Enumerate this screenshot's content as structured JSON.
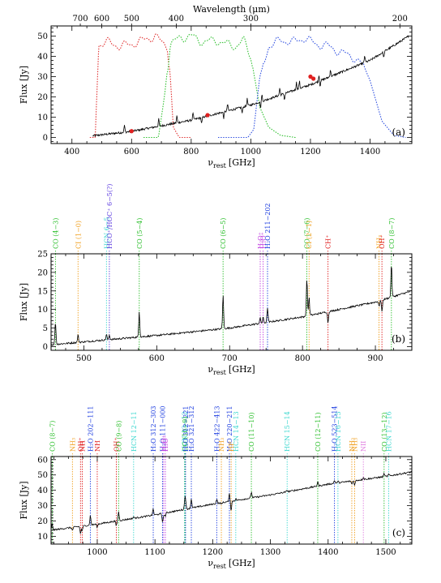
{
  "chart_data": [
    {
      "type": "line",
      "panel_label": "(a)",
      "xlabel_main": "ν",
      "xlabel_sub": "rest",
      "xlabel_unit": "[GHz]",
      "ylabel": "Flux [Jy]",
      "top_axis_label": "Wavelength (μm)",
      "xlim": [
        330,
        1540
      ],
      "ylim": [
        -3,
        55
      ],
      "xticks": [
        400,
        600,
        800,
        1000,
        1200,
        1400
      ],
      "yticks": [
        0,
        10,
        20,
        30,
        40,
        50
      ],
      "top_ticks": [
        {
          "label": "700",
          "nu": 428
        },
        {
          "label": "600",
          "nu": 500
        },
        {
          "label": "500",
          "nu": 600
        },
        {
          "label": "400",
          "nu": 750
        },
        {
          "label": "300",
          "nu": 1000
        },
        {
          "label": "200",
          "nu": 1500
        }
      ],
      "continuum": {
        "x": [
          470,
          600,
          800,
          1000,
          1200,
          1400,
          1530
        ],
        "y": [
          0.8,
          3,
          8.5,
          16,
          26,
          38,
          50
        ]
      },
      "filters": [
        {
          "color": "#e03030",
          "x": [
            460,
            478,
            490,
            520,
            560,
            600,
            640,
            680,
            700,
            720,
            730,
            740,
            760,
            800
          ],
          "y": [
            0,
            0,
            46,
            47,
            45,
            46,
            48,
            50,
            47,
            45,
            30,
            5,
            0,
            0
          ]
        },
        {
          "color": "#30c030",
          "x": [
            640,
            690,
            710,
            730,
            760,
            800,
            840,
            880,
            920,
            950,
            975,
            1000,
            1030,
            1060,
            1100,
            1150
          ],
          "y": [
            0,
            0,
            20,
            46,
            49,
            50,
            47,
            48,
            46,
            45,
            48,
            40,
            15,
            5,
            1,
            0
          ]
        },
        {
          "color": "#3050e0",
          "x": [
            890,
            990,
            1010,
            1030,
            1060,
            1100,
            1140,
            1180,
            1220,
            1260,
            1300,
            1340,
            1380,
            1400,
            1420,
            1440,
            1480,
            1520
          ],
          "y": [
            0,
            0,
            4,
            30,
            45,
            48,
            47,
            49,
            46,
            45,
            42,
            40,
            35,
            28,
            18,
            8,
            1,
            0
          ]
        }
      ],
      "markers": {
        "color": "#e02020",
        "x": [
          600,
          855,
          1200,
          1210
        ],
        "y": [
          3.1,
          11,
          30,
          29
        ]
      }
    },
    {
      "type": "line",
      "panel_label": "(b)",
      "xlabel_main": "ν",
      "xlabel_sub": "rest",
      "xlabel_unit": "[GHz]",
      "ylabel": "Flux [Jy]",
      "xlim": [
        455,
        950
      ],
      "ylim": [
        -1,
        25
      ],
      "xticks": [
        500,
        600,
        700,
        800,
        900
      ],
      "yticks": [
        0,
        5,
        10,
        15,
        20,
        25
      ],
      "continuum": {
        "x": [
          455,
          600,
          700,
          800,
          900,
          950
        ],
        "y": [
          0.5,
          3,
          5,
          8,
          12,
          15
        ]
      },
      "lines": [
        {
          "label": "CO (4−3)",
          "nu": 461,
          "color": "#30c030",
          "peak": 6
        },
        {
          "label": "CI (1−0)",
          "nu": 492,
          "color": "#f0a020",
          "peak": 2
        },
        {
          "label": "HCN 6−5",
          "nu": 531,
          "color": "#40d8d0",
          "peak": 1.5
        },
        {
          "label": "HCO⁺/HOC⁺ 6−5(?)",
          "nu": 535,
          "color": "#6040e0",
          "peak": 1.2
        },
        {
          "label": "CO (5−4)",
          "nu": 576,
          "color": "#30c030",
          "peak": 7
        },
        {
          "label": "CO (6−5)",
          "nu": 691,
          "color": "#30c030",
          "peak": 9
        },
        {
          "label": "H₂O⁺",
          "nu": 742,
          "color": "#c040e0",
          "peak": 1.5
        },
        {
          "label": "H₂O⁺",
          "nu": 746,
          "color": "#c040e0",
          "peak": 1.5
        },
        {
          "label": "H₂O 211−202",
          "nu": 752,
          "color": "#2040e0",
          "peak": 4
        },
        {
          "label": "CO (7−6)",
          "nu": 806,
          "color": "#30c030",
          "peak": 10
        },
        {
          "label": "CI (2−1)",
          "nu": 809,
          "color": "#f0a020",
          "peak": 5
        },
        {
          "label": "CH⁺",
          "nu": 835,
          "color": "#e02020",
          "peak": -3
        },
        {
          "label": "NH₃",
          "nu": 905,
          "color": "#f0a020",
          "peak": -1.5
        },
        {
          "label": "OH⁺",
          "nu": 909,
          "color": "#e02020",
          "peak": -3
        },
        {
          "label": "CO (8−7)",
          "nu": 922,
          "color": "#30c030",
          "peak": 9
        }
      ]
    },
    {
      "type": "line",
      "panel_label": "(c)",
      "xlabel_main": "ν",
      "xlabel_sub": "rest",
      "xlabel_unit": "[GHz]",
      "ylabel": "Flux [Jy]",
      "xlim": [
        920,
        1545
      ],
      "ylim": [
        5,
        62
      ],
      "xticks": [
        1000,
        1100,
        1200,
        1300,
        1400,
        1500
      ],
      "yticks": [
        10,
        20,
        30,
        40,
        50,
        60
      ],
      "continuum": {
        "x": [
          920,
          1000,
          1100,
          1200,
          1300,
          1400,
          1500,
          1545
        ],
        "y": [
          14,
          18,
          24,
          31,
          37,
          44,
          49,
          52
        ]
      },
      "lines": [
        {
          "label": "CO (8−7)",
          "nu": 922,
          "color": "#30c030",
          "peak": 4
        },
        {
          "label": "NH₃",
          "nu": 957,
          "color": "#f0a020",
          "peak": -2
        },
        {
          "label": "OH⁺",
          "nu": 971,
          "color": "#e02020",
          "peak": -5
        },
        {
          "label": "NH",
          "nu": 974,
          "color": "#e02020",
          "peak": -3
        },
        {
          "label": "H₂O 202−111",
          "nu": 988,
          "color": "#2040e0",
          "peak": 6
        },
        {
          "label": "NH",
          "nu": 1000,
          "color": "#e02020",
          "peak": -2
        },
        {
          "label": "OH⁺",
          "nu": 1033,
          "color": "#e02020",
          "peak": -3
        },
        {
          "label": "CO (9−8)",
          "nu": 1037,
          "color": "#30c030",
          "peak": 6
        },
        {
          "label": "HCN 12−11",
          "nu": 1063,
          "color": "#40d8d0",
          "peak": 1
        },
        {
          "label": "H₂O 312−303",
          "nu": 1097,
          "color": "#2040e0",
          "peak": 4
        },
        {
          "label": "H₂O 111−000",
          "nu": 1113,
          "color": "#2040e0",
          "peak": -5
        },
        {
          "label": "H₂O⁺",
          "nu": 1115,
          "color": "#c040e0",
          "peak": -2
        },
        {
          "label": "H₂O⁺",
          "nu": 1118,
          "color": "#c040e0",
          "peak": -2
        },
        {
          "label": "HCN 13−12",
          "nu": 1151,
          "color": "#40d8d0",
          "peak": 1
        },
        {
          "label": "CO (10−9)",
          "nu": 1152,
          "color": "#30c030",
          "peak": 6
        },
        {
          "label": "H₂O 312−221",
          "nu": 1153,
          "color": "#2040e0",
          "peak": 4
        },
        {
          "label": "H₂O 321−312",
          "nu": 1163,
          "color": "#2040e0",
          "peak": 6
        },
        {
          "label": "H₂O 422−413",
          "nu": 1207,
          "color": "#2040e0",
          "peak": 3
        },
        {
          "label": "NH₃",
          "nu": 1215,
          "color": "#f0a020",
          "peak": -1
        },
        {
          "label": "H₂O 220−211",
          "nu": 1229,
          "color": "#2040e0",
          "peak": 5
        },
        {
          "label": "HF",
          "nu": 1232,
          "color": "#f0a020",
          "peak": -6
        },
        {
          "label": "HCN 14−13",
          "nu": 1240,
          "color": "#40d8d0",
          "peak": 1
        },
        {
          "label": "CO (11−10)",
          "nu": 1267,
          "color": "#30c030",
          "peak": 4
        },
        {
          "label": "HCN 15−14",
          "nu": 1329,
          "color": "#40d8d0",
          "peak": 1
        },
        {
          "label": "CO (12−11)",
          "nu": 1382,
          "color": "#30c030",
          "peak": 3
        },
        {
          "label": "H₂O 523−514",
          "nu": 1411,
          "color": "#2040e0",
          "peak": 2
        },
        {
          "label": "HCN 16−15",
          "nu": 1417,
          "color": "#40d8d0",
          "peak": 1
        },
        {
          "label": "NH₃",
          "nu": 1441,
          "color": "#f0a020",
          "peak": -2
        },
        {
          "label": "NH₃",
          "nu": 1446,
          "color": "#f0a020",
          "peak": -3
        },
        {
          "label": "NII",
          "nu": 1461,
          "color": "#e080e0",
          "peak": 1.5
        },
        {
          "label": "CO (13−12)",
          "nu": 1497,
          "color": "#30c030",
          "peak": 2
        },
        {
          "label": "HCN 17−16",
          "nu": 1505,
          "color": "#40d8d0",
          "peak": 1
        }
      ]
    }
  ]
}
